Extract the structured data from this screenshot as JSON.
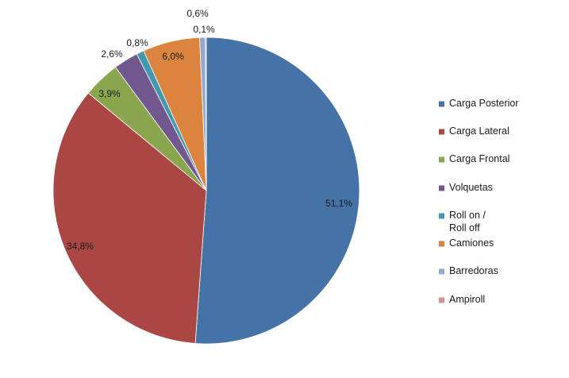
{
  "chart_data": {
    "type": "pie",
    "title": "",
    "legend_position": "right",
    "slices": [
      {
        "label": "Carga Posterior",
        "value": 51.1,
        "display": "51,1%",
        "color": "#4572A7"
      },
      {
        "label": "Carga Lateral",
        "value": 34.8,
        "display": "34,8%",
        "color": "#AA4643"
      },
      {
        "label": "Carga Frontal",
        "value": 3.9,
        "display": "3,9%",
        "color": "#89A54E"
      },
      {
        "label": "Volquetas",
        "value": 2.6,
        "display": "2,6%",
        "color": "#71588F"
      },
      {
        "label": "Roll on / Roll off",
        "label_lines": [
          "Roll on /",
          "Roll off"
        ],
        "value": 0.8,
        "display": "0,8%",
        "color": "#4198AF"
      },
      {
        "label": "Camiones",
        "value": 6.0,
        "display": "6,0%",
        "color": "#DB843D"
      },
      {
        "label": "Barredoras",
        "value": 0.6,
        "display": "0,6%",
        "color": "#93A9CF"
      },
      {
        "label": "Ampiroll",
        "value": 0.1,
        "display": "0,1%",
        "color": "#D19392"
      }
    ]
  }
}
